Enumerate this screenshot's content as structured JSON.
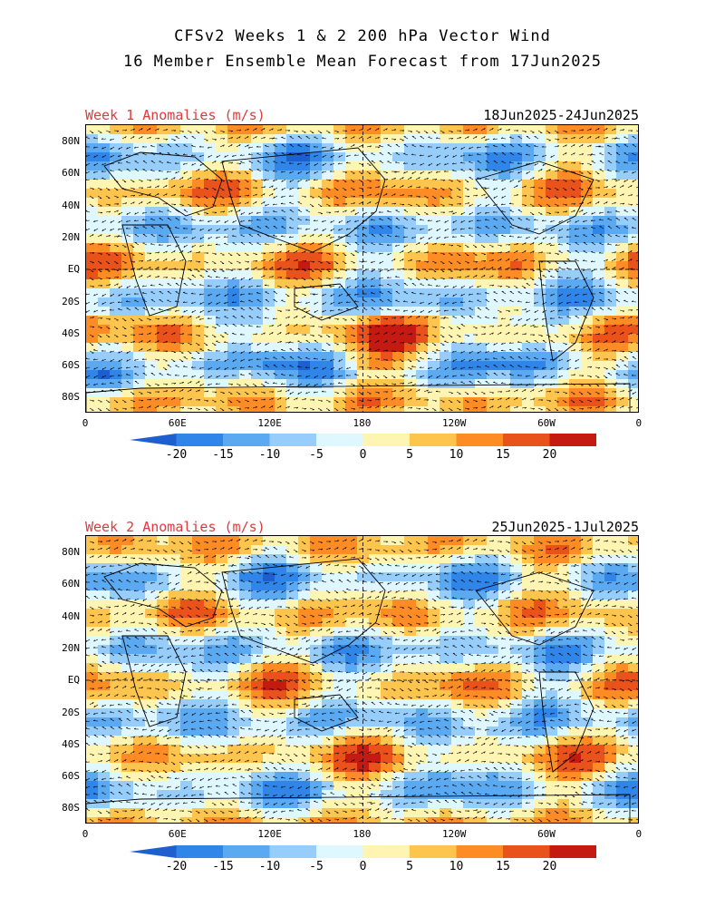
{
  "title_line1": "CFSv2 Weeks 1 & 2 200 hPa Vector Wind",
  "title_line2": "16 Member Ensemble Mean Forecast from 17Jun2025",
  "panels": [
    {
      "label": "Week 1 Anomalies (m/s)",
      "dates": "18Jun2025-24Jun2025"
    },
    {
      "label": "Week 2 Anomalies (m/s)",
      "dates": "25Jun2025-1Jul2025"
    }
  ],
  "lat_ticks": [
    "80N",
    "60N",
    "40N",
    "20N",
    "EQ",
    "20S",
    "40S",
    "60S",
    "80S"
  ],
  "lon_ticks": [
    "0",
    "60E",
    "120E",
    "180",
    "120W",
    "60W",
    "0"
  ],
  "colorbar": {
    "ticks": [
      "-20",
      "-15",
      "-10",
      "-5",
      "0",
      "5",
      "10",
      "15",
      "20"
    ],
    "colors": [
      "#1e5fd0",
      "#2f86e8",
      "#5aa9f1",
      "#97cdfa",
      "#dff7ff",
      "#fff5b3",
      "#fec54e",
      "#fd8c25",
      "#e9521a",
      "#c41a11",
      "#a00c0c"
    ]
  },
  "colors": {
    "title_red": "#e0393c",
    "land_outline": "#000000"
  }
}
